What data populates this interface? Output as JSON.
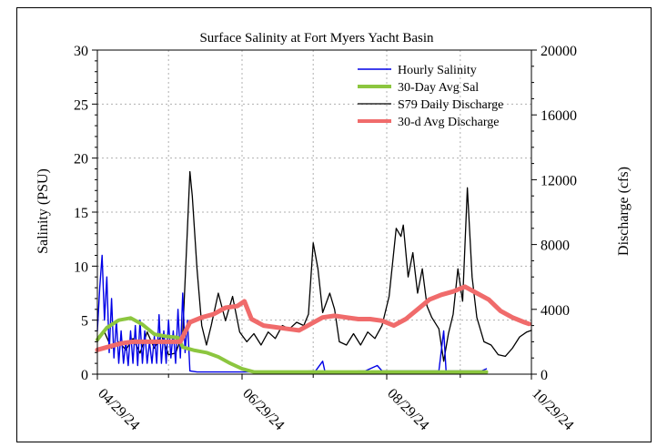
{
  "chart_data": {
    "type": "line",
    "title": "Surface Salinity at Fort Myers Yacht Basin",
    "ylabel_left": "Salinity (PSU)",
    "ylabel_right": "Discharge (cfs)",
    "grid": true,
    "legend_position": "top-right",
    "x_range": [
      "2024-04-29",
      "2024-10-29"
    ],
    "x_ticks": [
      "04/29/24",
      "06/29/24",
      "08/29/24",
      "10/29/24"
    ],
    "y_left": {
      "range": [
        0,
        30
      ],
      "ticks": [
        "0",
        "5",
        "10",
        "15",
        "20",
        "25",
        "30"
      ]
    },
    "y_right": {
      "range": [
        0,
        20000
      ],
      "ticks": [
        "0",
        "4000",
        "8000",
        "12000",
        "16000",
        "20000"
      ]
    },
    "colors": {
      "hourly_salinity": "#0000e6",
      "avg_salinity": "#8cc63f",
      "daily_discharge": "#000000",
      "avg_discharge": "#f06b6b"
    },
    "series": [
      {
        "name": "Hourly Salinity",
        "axis": "left",
        "points": [
          [
            "2024-04-29",
            4
          ],
          [
            "2024-04-30",
            8
          ],
          [
            "2024-05-01",
            11
          ],
          [
            "2024-05-02",
            5
          ],
          [
            "2024-05-03",
            9
          ],
          [
            "2024-05-04",
            2
          ],
          [
            "2024-05-05",
            7
          ],
          [
            "2024-05-06",
            1.5
          ],
          [
            "2024-05-07",
            5
          ],
          [
            "2024-05-08",
            1
          ],
          [
            "2024-05-09",
            4
          ],
          [
            "2024-05-10",
            1
          ],
          [
            "2024-05-11",
            3
          ],
          [
            "2024-05-12",
            0.8
          ],
          [
            "2024-05-13",
            4
          ],
          [
            "2024-05-14",
            1
          ],
          [
            "2024-05-15",
            4.5
          ],
          [
            "2024-05-16",
            0.8
          ],
          [
            "2024-05-17",
            5
          ],
          [
            "2024-05-18",
            1
          ],
          [
            "2024-05-19",
            4
          ],
          [
            "2024-05-20",
            1
          ],
          [
            "2024-05-21",
            3
          ],
          [
            "2024-05-22",
            1
          ],
          [
            "2024-05-23",
            3.5
          ],
          [
            "2024-05-24",
            1
          ],
          [
            "2024-05-25",
            5.5
          ],
          [
            "2024-05-26",
            1
          ],
          [
            "2024-05-27",
            4
          ],
          [
            "2024-05-28",
            1
          ],
          [
            "2024-05-29",
            5
          ],
          [
            "2024-05-30",
            1.5
          ],
          [
            "2024-05-31",
            4
          ],
          [
            "2024-06-01",
            1
          ],
          [
            "2024-06-02",
            6
          ],
          [
            "2024-06-03",
            1.5
          ],
          [
            "2024-06-04",
            7.5
          ],
          [
            "2024-06-05",
            2
          ],
          [
            "2024-06-06",
            5
          ],
          [
            "2024-06-07",
            0.3
          ],
          [
            "2024-06-10",
            0.2
          ],
          [
            "2024-06-20",
            0.2
          ],
          [
            "2024-07-03",
            0.2
          ],
          [
            "2024-07-15",
            0.2
          ],
          [
            "2024-07-30",
            0.3
          ],
          [
            "2024-08-02",
            1.2
          ],
          [
            "2024-08-03",
            0.2
          ],
          [
            "2024-08-20",
            0.3
          ],
          [
            "2024-08-25",
            0.8
          ],
          [
            "2024-08-27",
            0.3
          ],
          [
            "2024-09-15",
            0.3
          ],
          [
            "2024-09-20",
            0.3
          ],
          [
            "2024-09-22",
            4
          ],
          [
            "2024-09-23",
            0.3
          ],
          [
            "2024-10-08",
            0.3
          ],
          [
            "2024-10-10",
            0.5
          ]
        ]
      },
      {
        "name": "30-Day Avg Sal",
        "axis": "left",
        "points": [
          [
            "2024-04-29",
            3.2
          ],
          [
            "2024-05-03",
            4.3
          ],
          [
            "2024-05-08",
            5
          ],
          [
            "2024-05-13",
            5.2
          ],
          [
            "2024-05-18",
            4.6
          ],
          [
            "2024-05-23",
            3.7
          ],
          [
            "2024-05-28",
            3.5
          ],
          [
            "2024-06-02",
            3.4
          ],
          [
            "2024-06-04",
            2.5
          ],
          [
            "2024-06-09",
            2.2
          ],
          [
            "2024-06-14",
            2.0
          ],
          [
            "2024-06-19",
            1.6
          ],
          [
            "2024-06-24",
            1.0
          ],
          [
            "2024-06-29",
            0.5
          ],
          [
            "2024-07-04",
            0.2
          ],
          [
            "2024-07-15",
            0.2
          ],
          [
            "2024-08-01",
            0.2
          ],
          [
            "2024-08-20",
            0.2
          ],
          [
            "2024-09-10",
            0.2
          ],
          [
            "2024-10-10",
            0.2
          ]
        ]
      },
      {
        "name": "S79 Daily Discharge",
        "axis": "right",
        "points": [
          [
            "2024-04-29",
            2000
          ],
          [
            "2024-05-02",
            2600
          ],
          [
            "2024-05-05",
            1600
          ],
          [
            "2024-05-08",
            2000
          ],
          [
            "2024-05-11",
            1500
          ],
          [
            "2024-05-14",
            2200
          ],
          [
            "2024-05-17",
            1300
          ],
          [
            "2024-05-20",
            2600
          ],
          [
            "2024-05-23",
            1600
          ],
          [
            "2024-05-26",
            2400
          ],
          [
            "2024-05-29",
            1200
          ],
          [
            "2024-06-01",
            1300
          ],
          [
            "2024-06-04",
            2500
          ],
          [
            "2024-06-06",
            9000
          ],
          [
            "2024-06-07",
            12500
          ],
          [
            "2024-06-08",
            11000
          ],
          [
            "2024-06-10",
            6500
          ],
          [
            "2024-06-12",
            3000
          ],
          [
            "2024-06-14",
            1800
          ],
          [
            "2024-06-16",
            3000
          ],
          [
            "2024-06-19",
            5000
          ],
          [
            "2024-06-22",
            3300
          ],
          [
            "2024-06-25",
            4800
          ],
          [
            "2024-06-28",
            2600
          ],
          [
            "2024-07-01",
            2000
          ],
          [
            "2024-07-04",
            2500
          ],
          [
            "2024-07-07",
            1800
          ],
          [
            "2024-07-10",
            2600
          ],
          [
            "2024-07-13",
            2200
          ],
          [
            "2024-07-16",
            3000
          ],
          [
            "2024-07-19",
            2800
          ],
          [
            "2024-07-22",
            3200
          ],
          [
            "2024-07-25",
            3000
          ],
          [
            "2024-07-27",
            3700
          ],
          [
            "2024-07-29",
            8100
          ],
          [
            "2024-07-31",
            6500
          ],
          [
            "2024-08-02",
            3800
          ],
          [
            "2024-08-05",
            5000
          ],
          [
            "2024-08-07",
            4000
          ],
          [
            "2024-08-09",
            2000
          ],
          [
            "2024-08-12",
            1800
          ],
          [
            "2024-08-15",
            2500
          ],
          [
            "2024-08-18",
            1800
          ],
          [
            "2024-08-21",
            2600
          ],
          [
            "2024-08-24",
            2200
          ],
          [
            "2024-08-27",
            3000
          ],
          [
            "2024-08-30",
            4800
          ],
          [
            "2024-09-02",
            9000
          ],
          [
            "2024-09-04",
            8500
          ],
          [
            "2024-09-05",
            9200
          ],
          [
            "2024-09-07",
            6000
          ],
          [
            "2024-09-09",
            7500
          ],
          [
            "2024-09-11",
            5000
          ],
          [
            "2024-09-13",
            6500
          ],
          [
            "2024-09-15",
            4200
          ],
          [
            "2024-09-17",
            3500
          ],
          [
            "2024-09-20",
            2800
          ],
          [
            "2024-09-22",
            800
          ],
          [
            "2024-09-24",
            2500
          ],
          [
            "2024-09-26",
            3700
          ],
          [
            "2024-09-28",
            6500
          ],
          [
            "2024-09-30",
            4500
          ],
          [
            "2024-10-02",
            11500
          ],
          [
            "2024-10-04",
            6000
          ],
          [
            "2024-10-06",
            3500
          ],
          [
            "2024-10-09",
            2000
          ],
          [
            "2024-10-12",
            1800
          ],
          [
            "2024-10-15",
            1200
          ],
          [
            "2024-10-18",
            1100
          ],
          [
            "2024-10-21",
            1600
          ],
          [
            "2024-10-24",
            2300
          ],
          [
            "2024-10-27",
            2600
          ],
          [
            "2024-10-29",
            2700
          ]
        ]
      },
      {
        "name": "30-d Avg Discharge",
        "axis": "right",
        "points": [
          [
            "2024-04-29",
            1500
          ],
          [
            "2024-05-04",
            1700
          ],
          [
            "2024-05-09",
            1900
          ],
          [
            "2024-05-14",
            2000
          ],
          [
            "2024-05-19",
            2000
          ],
          [
            "2024-05-24",
            2000
          ],
          [
            "2024-05-29",
            2000
          ],
          [
            "2024-06-03",
            2000
          ],
          [
            "2024-06-07",
            3200
          ],
          [
            "2024-06-12",
            3500
          ],
          [
            "2024-06-17",
            3700
          ],
          [
            "2024-06-22",
            4100
          ],
          [
            "2024-06-27",
            4200
          ],
          [
            "2024-06-30",
            4500
          ],
          [
            "2024-07-03",
            3400
          ],
          [
            "2024-07-08",
            3000
          ],
          [
            "2024-07-13",
            2900
          ],
          [
            "2024-07-18",
            2800
          ],
          [
            "2024-07-23",
            2700
          ],
          [
            "2024-07-28",
            3100
          ],
          [
            "2024-08-02",
            3500
          ],
          [
            "2024-08-07",
            3600
          ],
          [
            "2024-08-12",
            3500
          ],
          [
            "2024-08-17",
            3400
          ],
          [
            "2024-08-22",
            3400
          ],
          [
            "2024-08-27",
            3300
          ],
          [
            "2024-09-01",
            3000
          ],
          [
            "2024-09-06",
            3400
          ],
          [
            "2024-09-11",
            4000
          ],
          [
            "2024-09-16",
            4600
          ],
          [
            "2024-09-21",
            4900
          ],
          [
            "2024-09-26",
            5100
          ],
          [
            "2024-10-01",
            5400
          ],
          [
            "2024-10-06",
            5000
          ],
          [
            "2024-10-11",
            4600
          ],
          [
            "2024-10-16",
            3900
          ],
          [
            "2024-10-21",
            3500
          ],
          [
            "2024-10-26",
            3200
          ],
          [
            "2024-10-28",
            3100
          ]
        ]
      }
    ]
  }
}
